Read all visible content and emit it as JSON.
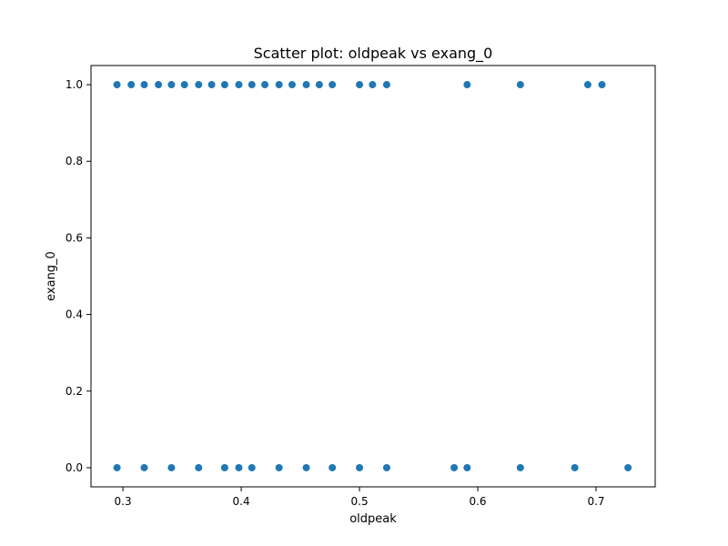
{
  "chart_data": {
    "type": "scatter",
    "title": "Scatter plot: oldpeak vs exang_0",
    "xlabel": "oldpeak",
    "ylabel": "exang_0",
    "xlim": [
      0.273,
      0.75
    ],
    "ylim": [
      -0.05,
      1.05
    ],
    "xticks": [
      0.3,
      0.4,
      0.5,
      0.6,
      0.7
    ],
    "xtick_labels": [
      "0.3",
      "0.4",
      "0.5",
      "0.6",
      "0.7"
    ],
    "yticks": [
      0.0,
      0.2,
      0.4,
      0.6,
      0.8,
      1.0
    ],
    "ytick_labels": [
      "0.0",
      "0.2",
      "0.4",
      "0.6",
      "0.8",
      "1.0"
    ],
    "grid": false,
    "legend": false,
    "marker_color": "#1f77b4",
    "points": [
      {
        "x": 0.295,
        "y": 1
      },
      {
        "x": 0.307,
        "y": 1
      },
      {
        "x": 0.318,
        "y": 1
      },
      {
        "x": 0.33,
        "y": 1
      },
      {
        "x": 0.341,
        "y": 1
      },
      {
        "x": 0.352,
        "y": 1
      },
      {
        "x": 0.364,
        "y": 1
      },
      {
        "x": 0.375,
        "y": 1
      },
      {
        "x": 0.386,
        "y": 1
      },
      {
        "x": 0.398,
        "y": 1
      },
      {
        "x": 0.409,
        "y": 1
      },
      {
        "x": 0.42,
        "y": 1
      },
      {
        "x": 0.432,
        "y": 1
      },
      {
        "x": 0.443,
        "y": 1
      },
      {
        "x": 0.455,
        "y": 1
      },
      {
        "x": 0.466,
        "y": 1
      },
      {
        "x": 0.477,
        "y": 1
      },
      {
        "x": 0.5,
        "y": 1
      },
      {
        "x": 0.511,
        "y": 1
      },
      {
        "x": 0.523,
        "y": 1
      },
      {
        "x": 0.591,
        "y": 1
      },
      {
        "x": 0.636,
        "y": 1
      },
      {
        "x": 0.693,
        "y": 1
      },
      {
        "x": 0.705,
        "y": 1
      },
      {
        "x": 0.295,
        "y": 0
      },
      {
        "x": 0.318,
        "y": 0
      },
      {
        "x": 0.341,
        "y": 0
      },
      {
        "x": 0.364,
        "y": 0
      },
      {
        "x": 0.386,
        "y": 0
      },
      {
        "x": 0.398,
        "y": 0
      },
      {
        "x": 0.409,
        "y": 0
      },
      {
        "x": 0.432,
        "y": 0
      },
      {
        "x": 0.455,
        "y": 0
      },
      {
        "x": 0.477,
        "y": 0
      },
      {
        "x": 0.5,
        "y": 0
      },
      {
        "x": 0.523,
        "y": 0
      },
      {
        "x": 0.58,
        "y": 0
      },
      {
        "x": 0.591,
        "y": 0
      },
      {
        "x": 0.636,
        "y": 0
      },
      {
        "x": 0.682,
        "y": 0
      },
      {
        "x": 0.727,
        "y": 0
      }
    ]
  }
}
